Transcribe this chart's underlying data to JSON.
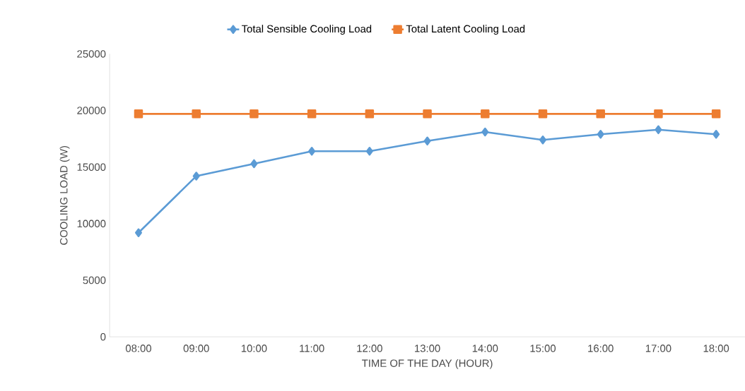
{
  "chart_data": {
    "type": "line",
    "xlabel": "TIME OF THE DAY (HOUR)",
    "ylabel": "COOLING LOAD (W)",
    "categories": [
      "08:00",
      "09:00",
      "10:00",
      "11:00",
      "12:00",
      "13:00",
      "14:00",
      "15:00",
      "16:00",
      "17:00",
      "18:00"
    ],
    "series": [
      {
        "name": "Total Sensible Cooling Load",
        "color": "#5b9bd5",
        "marker": "diamond",
        "values": [
          9200,
          14200,
          15300,
          16400,
          16400,
          17300,
          18100,
          17400,
          17900,
          18300,
          17900
        ]
      },
      {
        "name": "Total Latent Cooling Load",
        "color": "#ed7d31",
        "marker": "square",
        "values": [
          19700,
          19700,
          19700,
          19700,
          19700,
          19700,
          19700,
          19700,
          19700,
          19700,
          19700
        ]
      }
    ],
    "ylim": [
      0,
      25000
    ],
    "yticks": [
      0,
      5000,
      10000,
      15000,
      20000,
      25000
    ],
    "grid": false,
    "legend": "top",
    "line_style": "solid"
  }
}
